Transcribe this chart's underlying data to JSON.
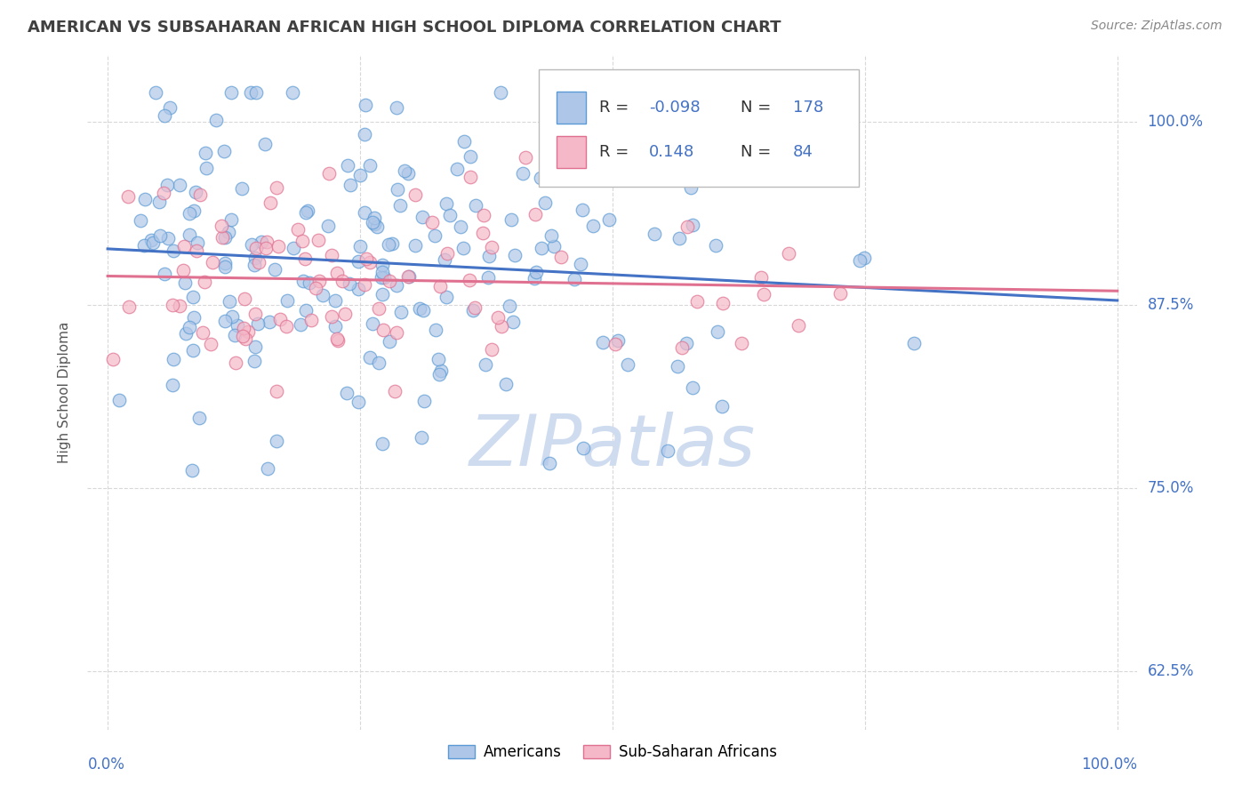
{
  "title": "AMERICAN VS SUBSAHARAN AFRICAN HIGH SCHOOL DIPLOMA CORRELATION CHART",
  "source": "Source: ZipAtlas.com",
  "ylabel": "High School Diploma",
  "ytick_labels": [
    "62.5%",
    "75.0%",
    "87.5%",
    "100.0%"
  ],
  "ytick_values": [
    0.625,
    0.75,
    0.875,
    1.0
  ],
  "xlim": [
    -0.02,
    1.02
  ],
  "ylim": [
    0.585,
    1.045
  ],
  "american_color": "#aec6e8",
  "african_color": "#f4b8c8",
  "american_edge_color": "#5b9bd5",
  "african_edge_color": "#e07090",
  "american_line_color": "#4472c4",
  "african_line_color": "#e07090",
  "background_color": "#ffffff",
  "grid_color": "#d8d8d8",
  "title_color": "#404040",
  "watermark_color": "#cfdcf0",
  "N_american": 178,
  "N_african": 84,
  "R_american": -0.098,
  "R_african": 0.148,
  "legend_R_american": "-0.098",
  "legend_N_american": "178",
  "legend_R_african": "0.148",
  "legend_N_african": "84"
}
